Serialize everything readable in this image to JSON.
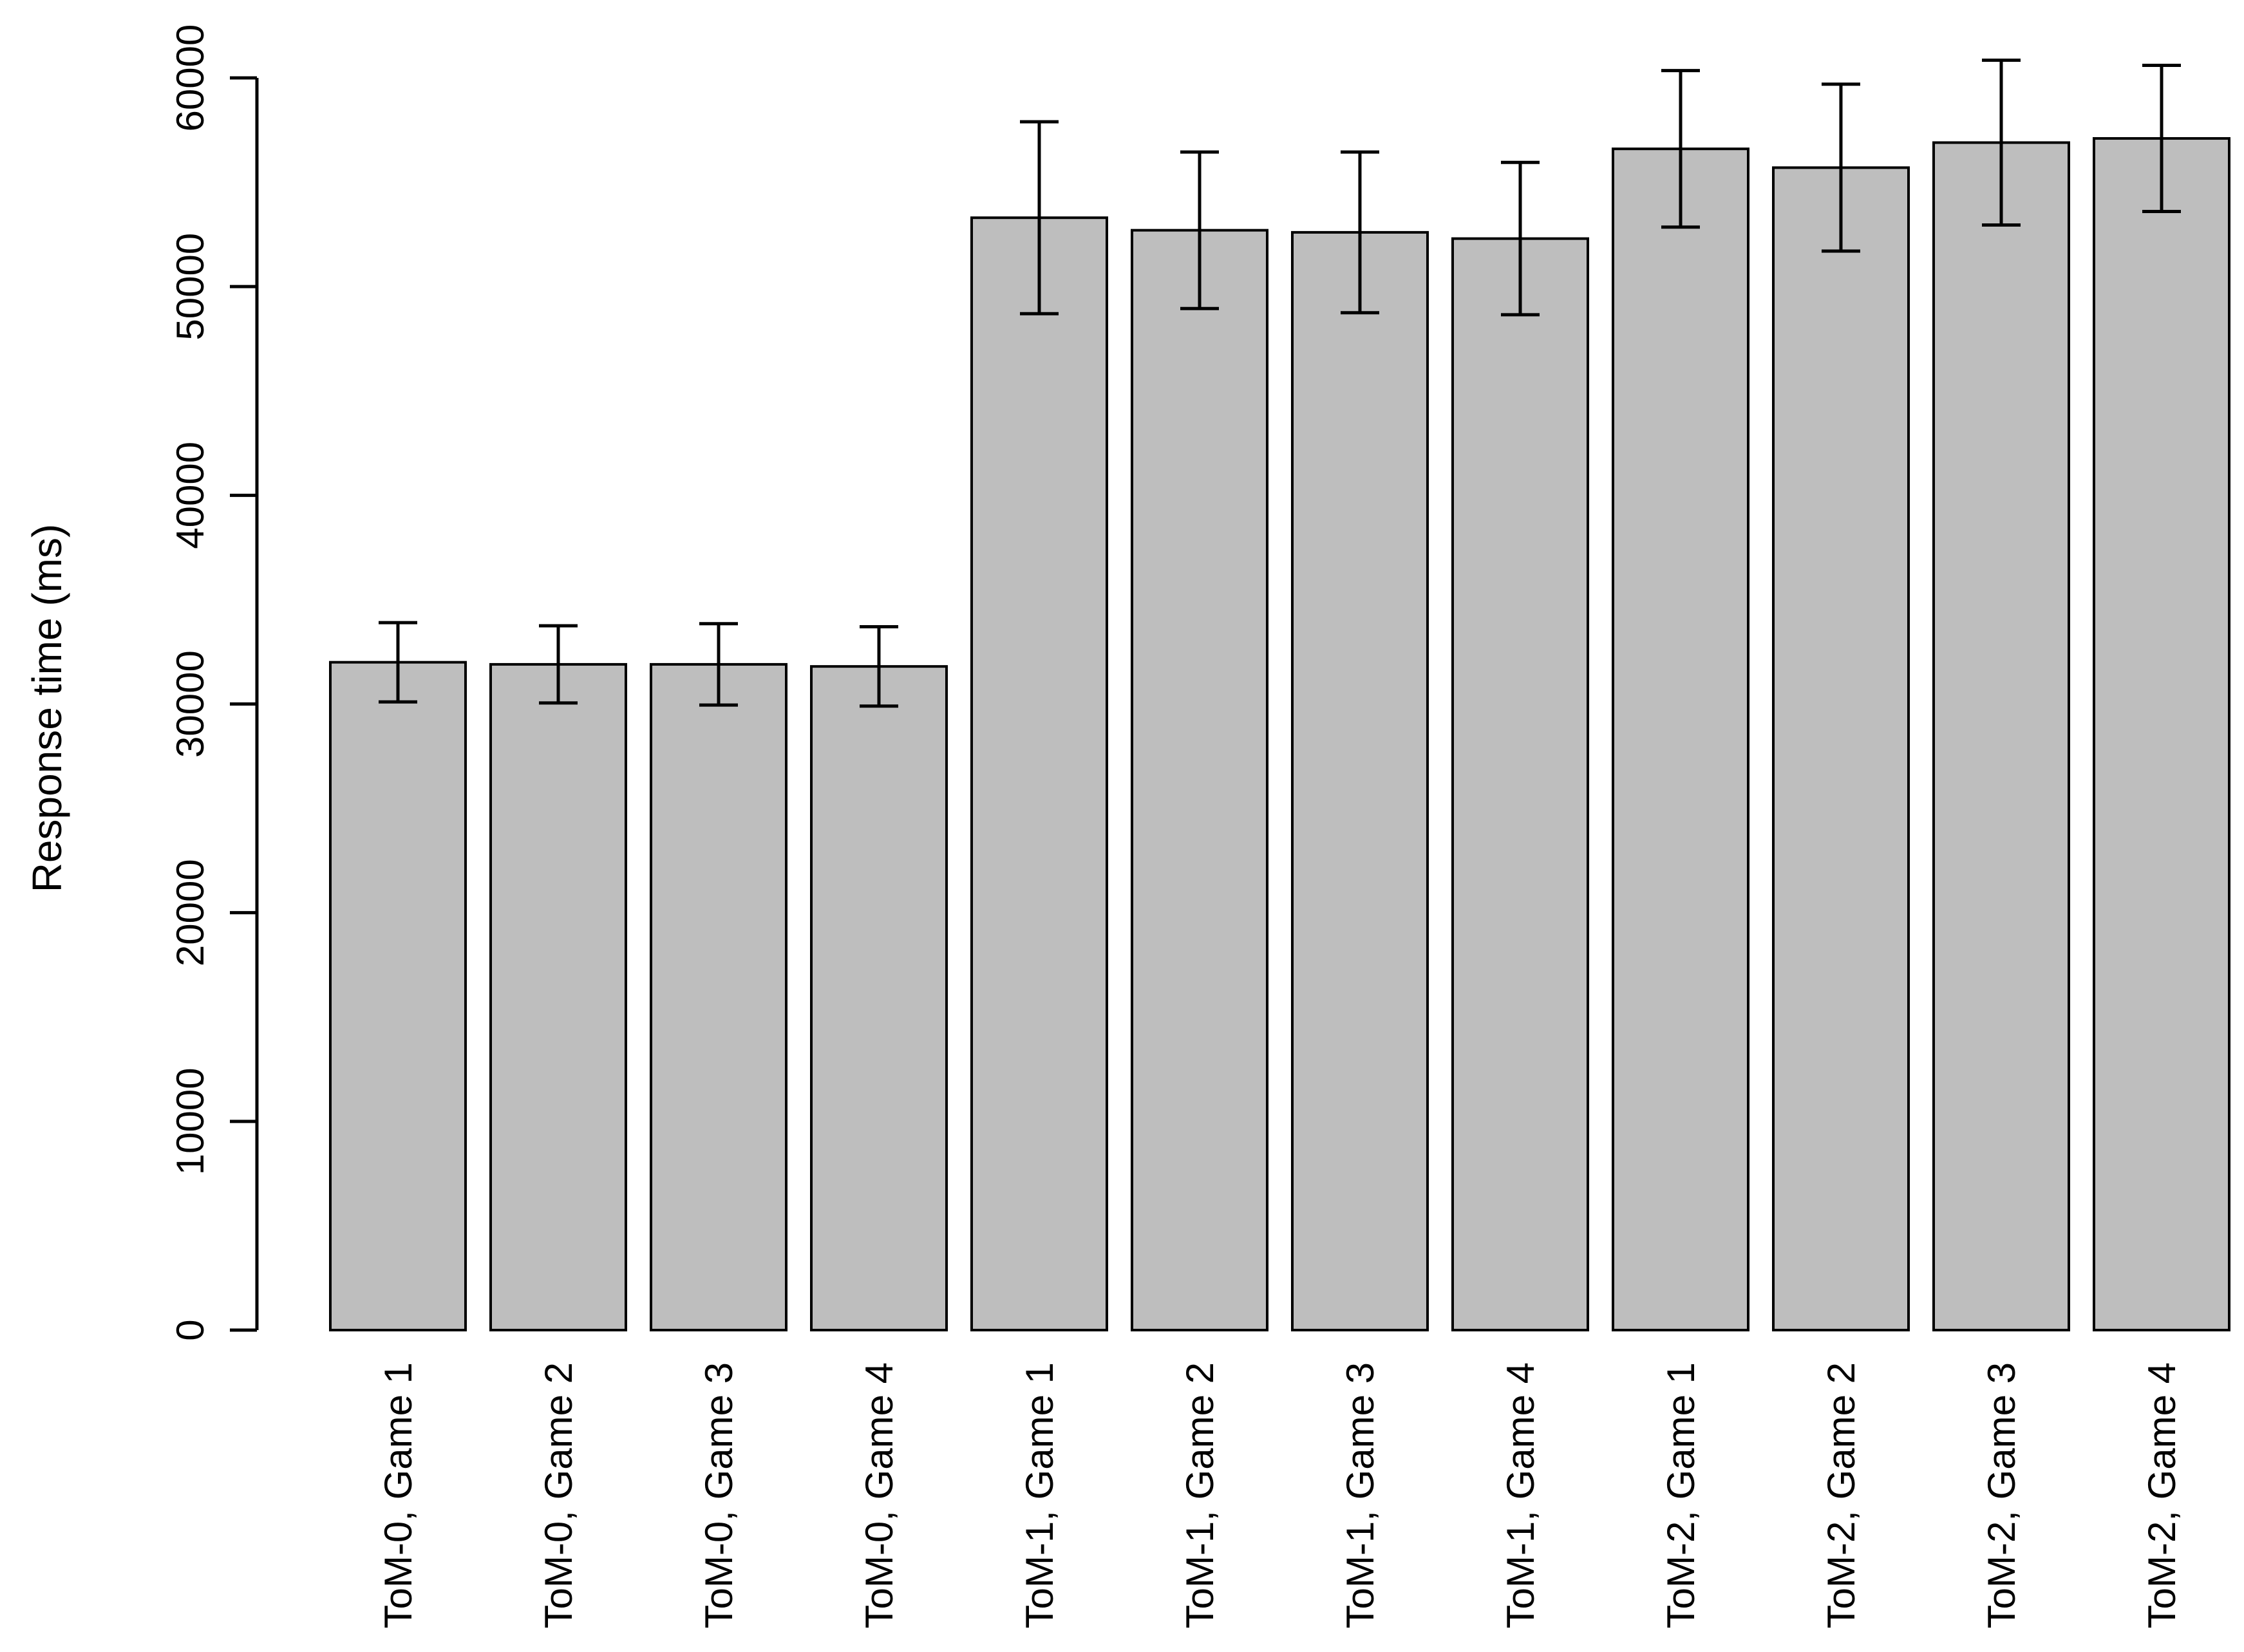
{
  "chart_data": {
    "type": "bar",
    "title": "",
    "xlabel": "",
    "ylabel": "Response time (ms)",
    "ylim": [
      0,
      60000
    ],
    "yticks": [
      0,
      10000,
      20000,
      30000,
      40000,
      50000,
      60000
    ],
    "ytick_labels": [
      "0",
      "10000",
      "20000",
      "30000",
      "40000",
      "50000",
      "60000"
    ],
    "grid": false,
    "legend": "none",
    "bar_fill_color": "#BEBEBE",
    "bar_border_color": "#000000",
    "error_bar_color": "#000000",
    "categories": [
      "ToM-0, Game 1",
      "ToM-0, Game 2",
      "ToM-0, Game 3",
      "ToM-0, Game 4",
      "ToM-1, Game 1",
      "ToM-1, Game 2",
      "ToM-1, Game 3",
      "ToM-1, Game 4",
      "ToM-2, Game 1",
      "ToM-2, Game 2",
      "ToM-2, Game 3",
      "ToM-2, Game 4"
    ],
    "values": [
      32000,
      31900,
      31900,
      31800,
      53300,
      52700,
      52600,
      52300,
      56600,
      55700,
      56900,
      57100
    ],
    "errors": [
      1900,
      1850,
      1950,
      1900,
      4600,
      3750,
      3850,
      3650,
      3750,
      4000,
      3950,
      3500
    ]
  }
}
